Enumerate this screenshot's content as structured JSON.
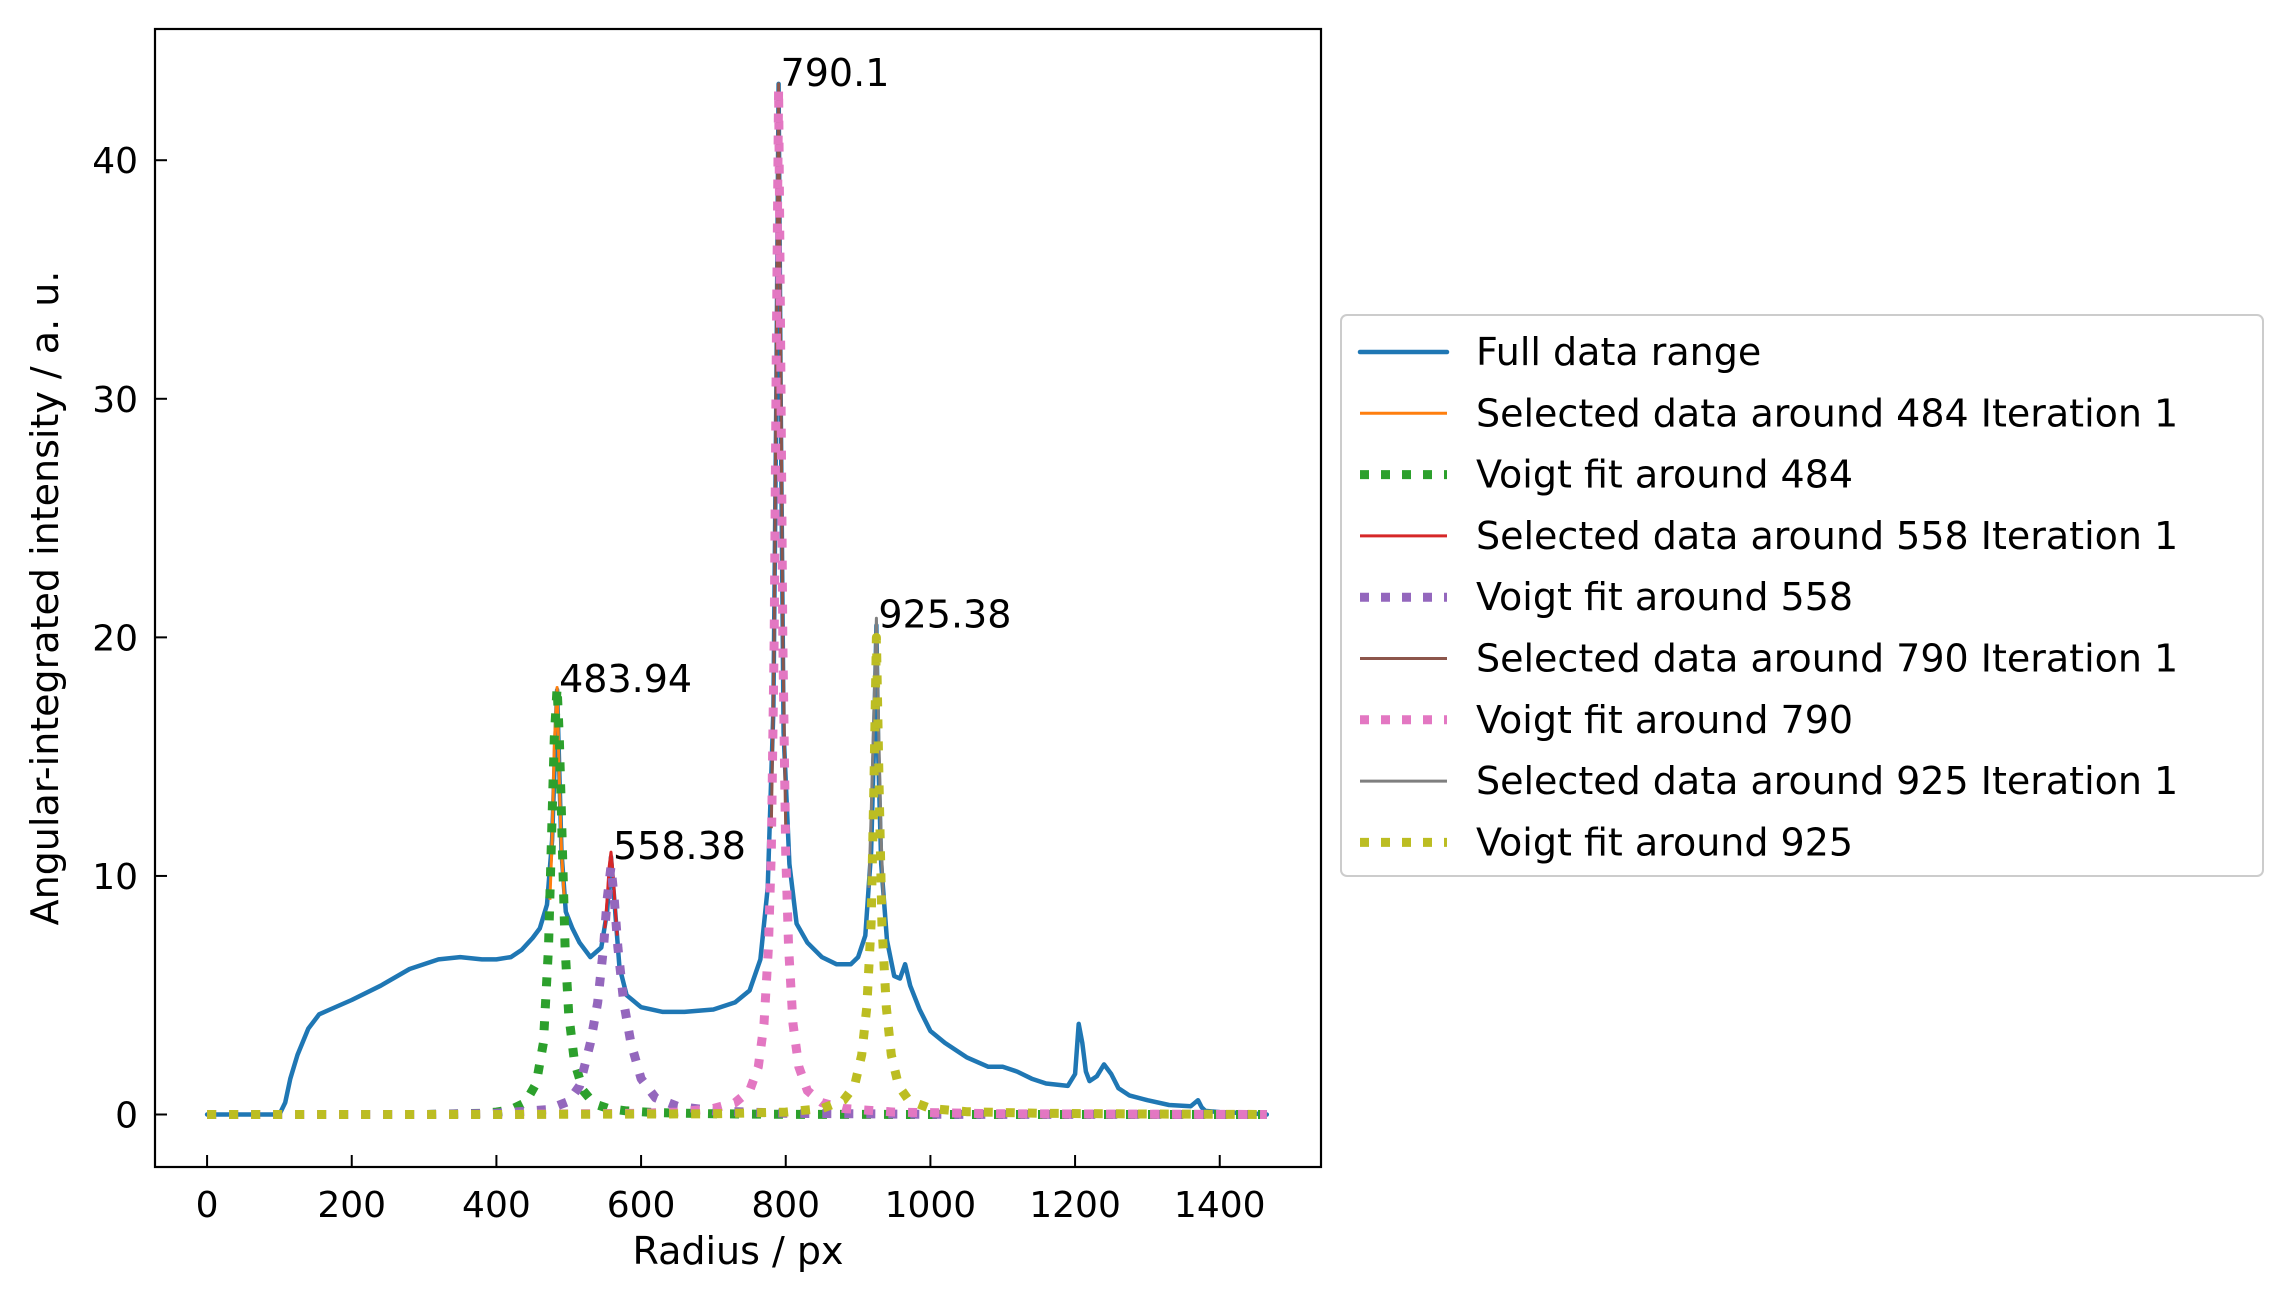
{
  "chart_data": {
    "type": "line",
    "title": "",
    "xlabel": "Radius / px",
    "ylabel": "Angular-integrated intensity / a. u.",
    "xlim": [
      -72,
      1540
    ],
    "ylim": [
      -2.2,
      45.5
    ],
    "xticks": [
      0,
      200,
      400,
      600,
      800,
      1000,
      1200,
      1400
    ],
    "yticks": [
      0,
      10,
      20,
      30,
      40
    ],
    "grid": false,
    "legend_position": "right, outside the plot",
    "annotations": [
      {
        "text": "790.1",
        "x": 790.1,
        "y": 43.2
      },
      {
        "text": "925.38",
        "x": 925.38,
        "y": 20.5
      },
      {
        "text": "483.94",
        "x": 483.94,
        "y": 17.8
      },
      {
        "text": "558.38",
        "x": 558.38,
        "y": 10.8
      }
    ],
    "series": [
      {
        "name": "Full data range",
        "color": "#1f77b4",
        "style": "solid",
        "x": [
          0,
          100,
          108,
          115,
          125,
          140,
          155,
          170,
          200,
          240,
          280,
          320,
          350,
          380,
          400,
          420,
          435,
          450,
          460,
          470,
          477,
          483.94,
          490,
          496,
          505,
          515,
          530,
          545,
          553,
          558.38,
          563,
          570,
          580,
          600,
          630,
          660,
          700,
          730,
          750,
          765,
          775,
          783,
          787,
          790.1,
          793,
          797,
          805,
          815,
          830,
          850,
          870,
          890,
          900,
          910,
          918,
          922,
          925.38,
          928,
          932,
          940,
          950,
          958,
          965,
          972,
          985,
          1000,
          1020,
          1050,
          1080,
          1100,
          1120,
          1140,
          1160,
          1190,
          1200,
          1205,
          1210,
          1215,
          1220,
          1230,
          1240,
          1250,
          1260,
          1275,
          1300,
          1330,
          1360,
          1370,
          1375,
          1380,
          1400,
          1440,
          1465
        ],
        "y": [
          0,
          0,
          0.5,
          1.5,
          2.5,
          3.6,
          4.2,
          4.4,
          4.8,
          5.4,
          6.1,
          6.5,
          6.6,
          6.5,
          6.5,
          6.6,
          6.9,
          7.4,
          7.8,
          8.8,
          11.5,
          17.8,
          11.0,
          8.5,
          7.8,
          7.2,
          6.6,
          7.0,
          8.5,
          10.8,
          9.0,
          6.2,
          5.0,
          4.5,
          4.3,
          4.3,
          4.4,
          4.7,
          5.2,
          6.5,
          9.5,
          17.0,
          30.0,
          43.2,
          30.0,
          16.0,
          10.5,
          8.0,
          7.2,
          6.6,
          6.3,
          6.3,
          6.6,
          7.5,
          11.0,
          15.5,
          20.5,
          15.0,
          10.5,
          7.3,
          5.8,
          5.7,
          6.3,
          5.4,
          4.4,
          3.5,
          3.0,
          2.4,
          2.0,
          2.0,
          1.8,
          1.5,
          1.3,
          1.2,
          1.7,
          3.8,
          3.0,
          1.8,
          1.4,
          1.6,
          2.1,
          1.7,
          1.1,
          0.8,
          0.6,
          0.4,
          0.35,
          0.6,
          0.3,
          0.15,
          0.1,
          0.05,
          0
        ]
      },
      {
        "name": "Selected data around 484 Iteration 1",
        "color": "#ff7f0e",
        "style": "solid",
        "x": [
          474,
          477,
          480,
          483.94,
          487,
          490,
          494
        ],
        "y": [
          9.0,
          11.5,
          15.5,
          17.9,
          14.0,
          11.0,
          9.0
        ]
      },
      {
        "name": "Voigt fit around 484",
        "color": "#2ca02c",
        "style": "dotted",
        "x": [
          0,
          100,
          200,
          300,
          380,
          400,
          420,
          440,
          455,
          465,
          472,
          477,
          480,
          483.94,
          487,
          490,
          495,
          500,
          508,
          520,
          535,
          555,
          580,
          620,
          700,
          800,
          1000,
          1200,
          1465
        ],
        "y": [
          0,
          0,
          0,
          0,
          0.05,
          0.1,
          0.2,
          0.5,
          1.3,
          3.0,
          7.0,
          12.5,
          15.8,
          17.9,
          15.8,
          12.5,
          7.0,
          4.2,
          2.2,
          1.0,
          0.45,
          0.25,
          0.15,
          0.08,
          0.03,
          0.01,
          0,
          0,
          0
        ]
      },
      {
        "name": "Selected data around 558 Iteration 1",
        "color": "#d62728",
        "style": "solid",
        "x": [
          550,
          553,
          556,
          558.38,
          561,
          564,
          567
        ],
        "y": [
          7.8,
          9.0,
          10.4,
          11.0,
          10.2,
          8.8,
          7.5
        ]
      },
      {
        "name": "Voigt fit around 558",
        "color": "#9467bd",
        "style": "dotted",
        "x": [
          0,
          200,
          300,
          400,
          470,
          500,
          515,
          530,
          540,
          548,
          553,
          558.38,
          563,
          568,
          576,
          586,
          600,
          620,
          650,
          700,
          800,
          1000,
          1465
        ],
        "y": [
          0,
          0,
          0,
          0.05,
          0.2,
          0.55,
          1.2,
          3.0,
          4.7,
          7.0,
          9.0,
          10.4,
          9.0,
          7.0,
          4.7,
          3.0,
          1.5,
          0.7,
          0.35,
          0.15,
          0.05,
          0.01,
          0
        ]
      },
      {
        "name": "Selected data around 790 Iteration 1",
        "color": "#8c564b",
        "style": "solid",
        "x": [
          780,
          784,
          787,
          790.1,
          793,
          796,
          800
        ],
        "y": [
          12.0,
          20.0,
          32.0,
          43.2,
          32.0,
          20.0,
          12.0
        ]
      },
      {
        "name": "Voigt fit around 790",
        "color": "#e377c2",
        "style": "dotted",
        "x": [
          0,
          200,
          400,
          600,
          650,
          700,
          730,
          750,
          762,
          770,
          776,
          780,
          784,
          787,
          790.1,
          793,
          796,
          800,
          804,
          810,
          818,
          830,
          850,
          880,
          950,
          1100,
          1465
        ],
        "y": [
          0,
          0,
          0,
          0.05,
          0.1,
          0.25,
          0.5,
          1.0,
          2.0,
          3.8,
          7.0,
          11.0,
          20.0,
          32.0,
          43.0,
          32.0,
          20.0,
          11.0,
          7.0,
          3.8,
          2.0,
          1.0,
          0.5,
          0.25,
          0.1,
          0.03,
          0
        ]
      },
      {
        "name": "Selected data around 925 Iteration 1",
        "color": "#7f7f7f",
        "style": "solid",
        "x": [
          915,
          918,
          921,
          925.38,
          929,
          932,
          935
        ],
        "y": [
          9.5,
          12.5,
          16.0,
          20.8,
          15.5,
          11.5,
          9.0
        ]
      },
      {
        "name": "Voigt fit around 925",
        "color": "#bcbd22",
        "style": "dotted",
        "x": [
          0,
          200,
          400,
          700,
          800,
          850,
          880,
          895,
          905,
          912,
          918,
          922,
          925.38,
          929,
          933,
          939,
          946,
          956,
          970,
          1000,
          1050,
          1150,
          1300,
          1465
        ],
        "y": [
          0,
          0,
          0,
          0.03,
          0.1,
          0.25,
          0.6,
          1.2,
          2.5,
          4.5,
          8.0,
          14.0,
          20.0,
          14.0,
          8.0,
          4.5,
          2.5,
          1.2,
          0.6,
          0.25,
          0.12,
          0.05,
          0.02,
          0
        ]
      }
    ]
  }
}
